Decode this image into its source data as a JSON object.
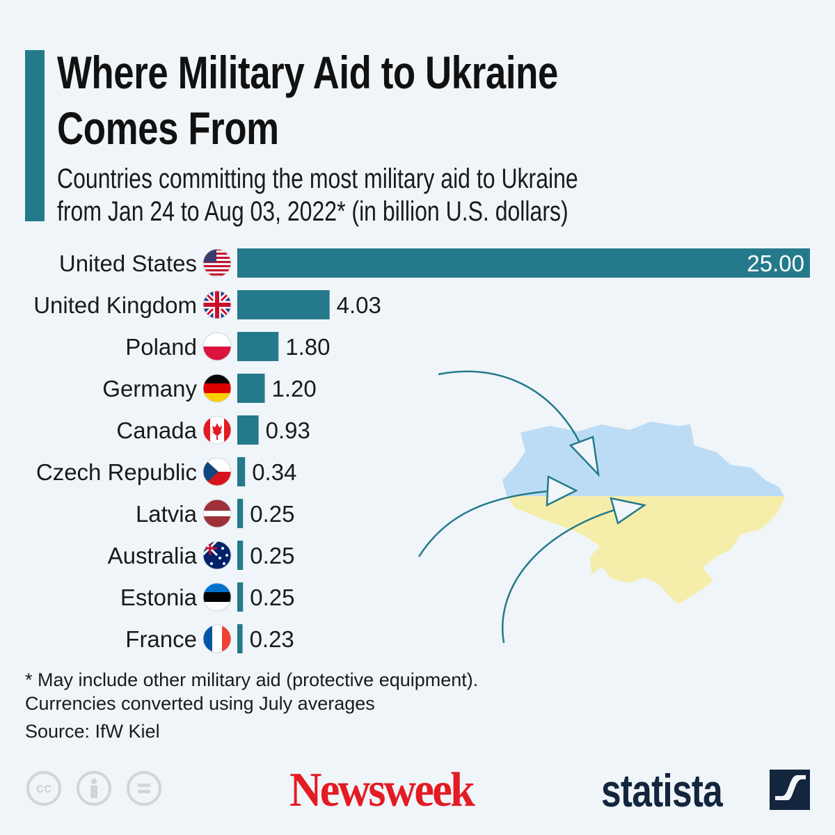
{
  "header": {
    "title_line1": "Where Military Aid to Ukraine",
    "title_line2": "Comes From",
    "subtitle_line1": "Countries committing the most military aid to Ukraine",
    "subtitle_line2": "from Jan 24 to Aug 03, 2022* (in billion U.S. dollars)"
  },
  "colors": {
    "bar": "#247a8a",
    "background": "#f0f5f9",
    "map_top": "#bcdcf5",
    "map_bottom": "#f5eeab",
    "newsweek": "#e31b23",
    "statista": "#13263d"
  },
  "chart_data": {
    "type": "bar",
    "orientation": "horizontal",
    "categories": [
      "United States",
      "United Kingdom",
      "Poland",
      "Germany",
      "Canada",
      "Czech Republic",
      "Latvia",
      "Australia",
      "Estonia",
      "France"
    ],
    "values": [
      25.0,
      4.03,
      1.8,
      1.2,
      0.93,
      0.34,
      0.25,
      0.25,
      0.25,
      0.23
    ],
    "value_labels": [
      "25.00",
      "4.03",
      "1.80",
      "1.20",
      "0.93",
      "0.34",
      "0.25",
      "0.25",
      "0.25",
      "0.23"
    ],
    "flag_icons": [
      "us-flag-icon",
      "uk-flag-icon",
      "poland-flag-icon",
      "germany-flag-icon",
      "canada-flag-icon",
      "czech-flag-icon",
      "latvia-flag-icon",
      "australia-flag-icon",
      "estonia-flag-icon",
      "france-flag-icon"
    ],
    "xlim": [
      0,
      25
    ],
    "grid": false
  },
  "footer": {
    "note_line1": "* May include other military aid (protective equipment).",
    "note_line2": "Currencies converted using July averages",
    "source": "Source: IfW Kiel",
    "cc_label": "cc",
    "brand_newsweek": "Newsweek",
    "brand_statista": "statista"
  }
}
